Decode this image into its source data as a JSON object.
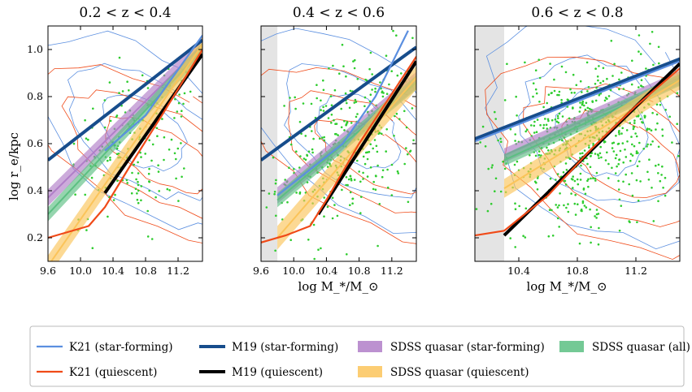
{
  "ylabel": "log r_e/kpc",
  "xlabel": "log M_*/M_⊙",
  "colors": {
    "k21_sf": "#5b8fe0",
    "k21_q": "#f04a18",
    "m19_sf": "#174d8c",
    "m19_q": "#000000",
    "sdss_sf": "#b07ec8",
    "sdss_all": "#5cbf82",
    "sdss_q": "#fbc45a",
    "points": "#2ecc2e",
    "shade": "#e4e4e4"
  },
  "legend": [
    {
      "key": "k21_sf",
      "label": "K21 (star-forming)",
      "style": "thin"
    },
    {
      "key": "m19_sf",
      "label": "M19 (star-forming)",
      "style": "thick"
    },
    {
      "key": "sdss_sf",
      "label": "SDSS quasar (star-forming)",
      "style": "band"
    },
    {
      "key": "sdss_all",
      "label": "SDSS quasar (all)",
      "style": "band"
    },
    {
      "key": "k21_q",
      "label": "K21 (quiescent)",
      "style": "thin"
    },
    {
      "key": "m19_q",
      "label": "M19 (quiescent)",
      "style": "thick"
    },
    {
      "key": "sdss_q",
      "label": "SDSS quasar (quiescent)",
      "style": "band"
    }
  ],
  "chart_data": [
    {
      "type": "line",
      "title": "0.2 < z < 0.4",
      "xlim": [
        9.6,
        11.5
      ],
      "ylim": [
        0.1,
        1.1
      ],
      "xticks": [
        "9.6",
        "10.0",
        "10.4",
        "10.8",
        "11.2"
      ],
      "yticks": [
        "0.2",
        "0.4",
        "0.6",
        "0.8",
        "1.0"
      ],
      "shade": null,
      "series": [
        {
          "name": "M19 (star-forming)",
          "x": [
            9.6,
            11.5
          ],
          "y": [
            0.53,
            1.04
          ]
        },
        {
          "name": "K21 (star-forming)",
          "x": [
            10.3,
            10.8,
            11.5
          ],
          "y": [
            0.57,
            0.72,
            1.06
          ]
        },
        {
          "name": "M19 (quiescent)",
          "x": [
            10.3,
            11.5
          ],
          "y": [
            0.39,
            0.98
          ]
        },
        {
          "name": "K21 (quiescent)",
          "x": [
            9.6,
            10.1,
            10.3,
            10.6,
            11.0,
            11.5
          ],
          "y": [
            0.2,
            0.25,
            0.33,
            0.5,
            0.72,
            1.0
          ]
        },
        {
          "name": "SDSS quasar (star-forming)",
          "x": [
            9.6,
            11.5
          ],
          "y": [
            0.37,
            1.02
          ],
          "band": 0.035
        },
        {
          "name": "SDSS quasar (all)",
          "x": [
            9.6,
            11.5
          ],
          "y": [
            0.3,
            1.0
          ],
          "band": 0.03
        },
        {
          "name": "SDSS quasar (quiescent)",
          "x": [
            9.6,
            11.5
          ],
          "y": [
            0.08,
            1.02
          ],
          "band": 0.045
        }
      ]
    },
    {
      "type": "line",
      "title": "0.4 < z < 0.6",
      "xlim": [
        9.6,
        11.5
      ],
      "ylim": [
        0.1,
        1.1
      ],
      "xticks": [
        "9.6",
        "10.0",
        "10.4",
        "10.8",
        "11.2"
      ],
      "yticks": [],
      "shade": [
        9.6,
        9.8
      ],
      "series": [
        {
          "name": "M19 (star-forming)",
          "x": [
            9.6,
            11.5
          ],
          "y": [
            0.53,
            1.01
          ]
        },
        {
          "name": "K21 (star-forming)",
          "x": [
            9.8,
            10.6,
            11.0,
            11.4
          ],
          "y": [
            0.38,
            0.6,
            0.8,
            1.08
          ]
        },
        {
          "name": "M19 (quiescent)",
          "x": [
            10.3,
            11.5
          ],
          "y": [
            0.3,
            0.95
          ]
        },
        {
          "name": "K21 (quiescent)",
          "x": [
            9.6,
            9.9,
            10.2,
            10.4,
            10.8,
            11.5
          ],
          "y": [
            0.18,
            0.21,
            0.25,
            0.36,
            0.6,
            0.97
          ]
        },
        {
          "name": "SDSS quasar (star-forming)",
          "x": [
            9.8,
            11.5
          ],
          "y": [
            0.38,
            0.87
          ],
          "band": 0.035
        },
        {
          "name": "SDSS quasar (all)",
          "x": [
            9.8,
            11.5
          ],
          "y": [
            0.36,
            0.86
          ],
          "band": 0.03
        },
        {
          "name": "SDSS quasar (quiescent)",
          "x": [
            9.8,
            11.5
          ],
          "y": [
            0.2,
            0.88
          ],
          "band": 0.05
        }
      ]
    },
    {
      "type": "line",
      "title": "0.6 < z < 0.8",
      "xlim": [
        10.1,
        11.5
      ],
      "ylim": [
        0.1,
        1.1
      ],
      "xticks": [
        "10.4",
        "10.8",
        "11.2"
      ],
      "yticks": [],
      "shade": [
        10.1,
        10.3
      ],
      "series": [
        {
          "name": "M19 (star-forming)",
          "x": [
            10.1,
            11.5
          ],
          "y": [
            0.62,
            0.96
          ]
        },
        {
          "name": "K21 (star-forming)",
          "x": [
            10.1,
            11.5
          ],
          "y": [
            0.61,
            0.95
          ]
        },
        {
          "name": "M19 (quiescent)",
          "x": [
            10.3,
            11.5
          ],
          "y": [
            0.21,
            0.94
          ]
        },
        {
          "name": "K21 (quiescent)",
          "x": [
            10.1,
            10.3,
            10.6,
            10.9,
            11.2,
            11.5
          ],
          "y": [
            0.21,
            0.23,
            0.38,
            0.58,
            0.76,
            0.92
          ]
        },
        {
          "name": "SDSS quasar (star-forming)",
          "x": [
            10.3,
            11.5
          ],
          "y": [
            0.55,
            0.88
          ],
          "band": 0.03
        },
        {
          "name": "SDSS quasar (all)",
          "x": [
            10.3,
            11.5
          ],
          "y": [
            0.53,
            0.87
          ],
          "band": 0.025
        },
        {
          "name": "SDSS quasar (quiescent)",
          "x": [
            10.3,
            11.5
          ],
          "y": [
            0.41,
            0.87
          ],
          "band": 0.04
        }
      ]
    }
  ]
}
